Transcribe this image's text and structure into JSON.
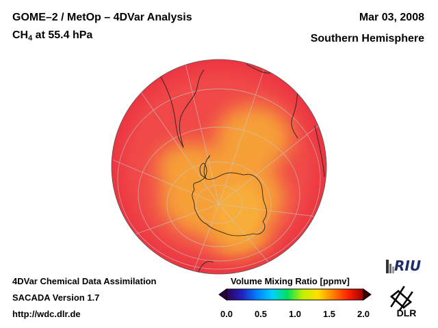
{
  "header": {
    "title": "GOME–2 / MetOp – 4DVar Analysis",
    "species": "CH",
    "species_sub": "4",
    "level": " at 55.4 hPa",
    "date": "Mar 03, 2008",
    "hemisphere": "Southern Hemisphere"
  },
  "footer": {
    "line1": "4DVar Chemical Data Assimilation",
    "line2": "SACADA Version 1.7",
    "line3": "http://wdc.dlr.de"
  },
  "colorbar": {
    "title": "Volume Mixing Ratio [ppmv]",
    "min": 0.0,
    "max": 2.0,
    "ticks": [
      "0.0",
      "0.5",
      "1.0",
      "1.5",
      "2.0"
    ],
    "colors": [
      "#300050",
      "#2020c0",
      "#0080ff",
      "#00d0ff",
      "#00e060",
      "#c0f000",
      "#ffe000",
      "#ff8000",
      "#ff2000",
      "#a00000"
    ]
  },
  "map": {
    "projection": "orthographic, south polar view",
    "field_value_background": 1.82,
    "field_value_polar_vortex": 1.62,
    "ocean_color": "#f04848",
    "vortex_color": "#f6a038"
  },
  "logos": {
    "riu": "RIU",
    "dlr": "DLR"
  }
}
